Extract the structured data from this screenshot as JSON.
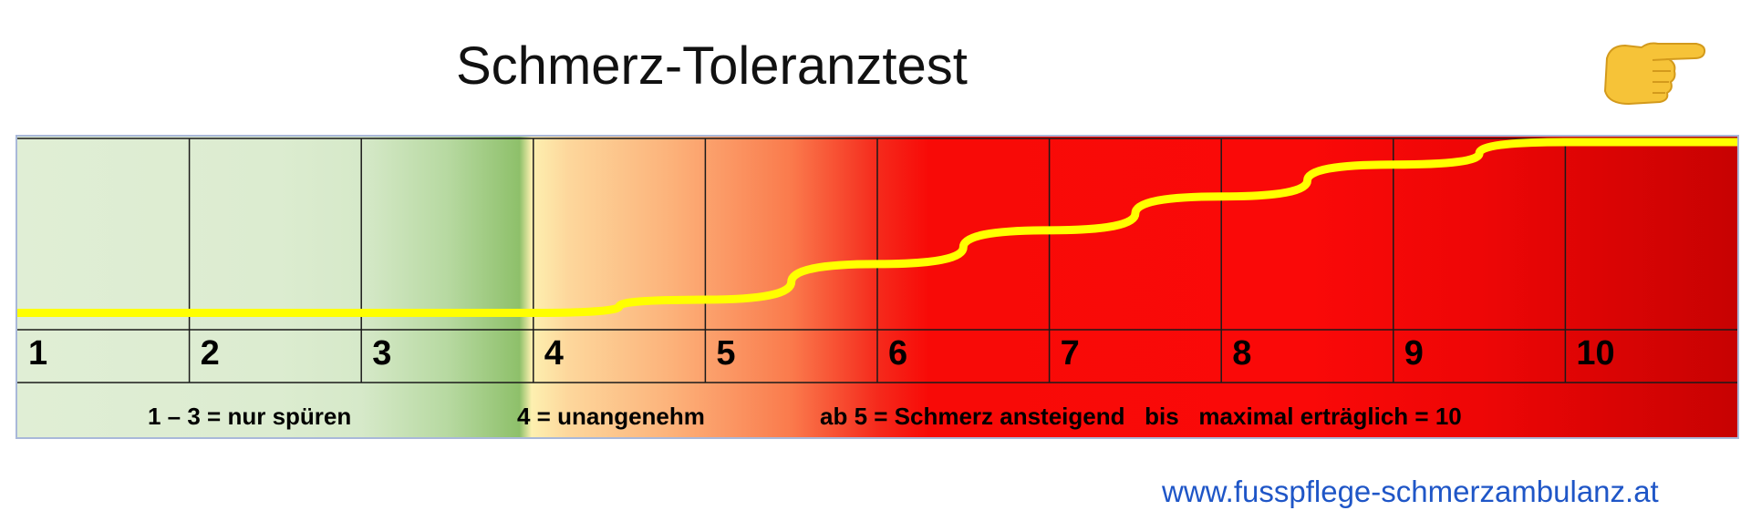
{
  "title": "Schmerz-Toleranztest",
  "icon": "pointing-hand-icon",
  "scale": {
    "numbers": [
      "1",
      "2",
      "3",
      "4",
      "5",
      "6",
      "7",
      "8",
      "9",
      "10"
    ],
    "curve_values": [
      0.09,
      0.09,
      0.09,
      0.09,
      0.16,
      0.35,
      0.53,
      0.71,
      0.88,
      1.0
    ],
    "curve_color": "#ffff00",
    "legend": {
      "low": "1 – 3 = nur spüren",
      "mid": "4 = unangenehm",
      "high": "ab 5 = Schmerz ansteigend   bis   maximal erträglich = 10"
    }
  },
  "website": "www.fusspflege-schmerzambulanz.at"
}
